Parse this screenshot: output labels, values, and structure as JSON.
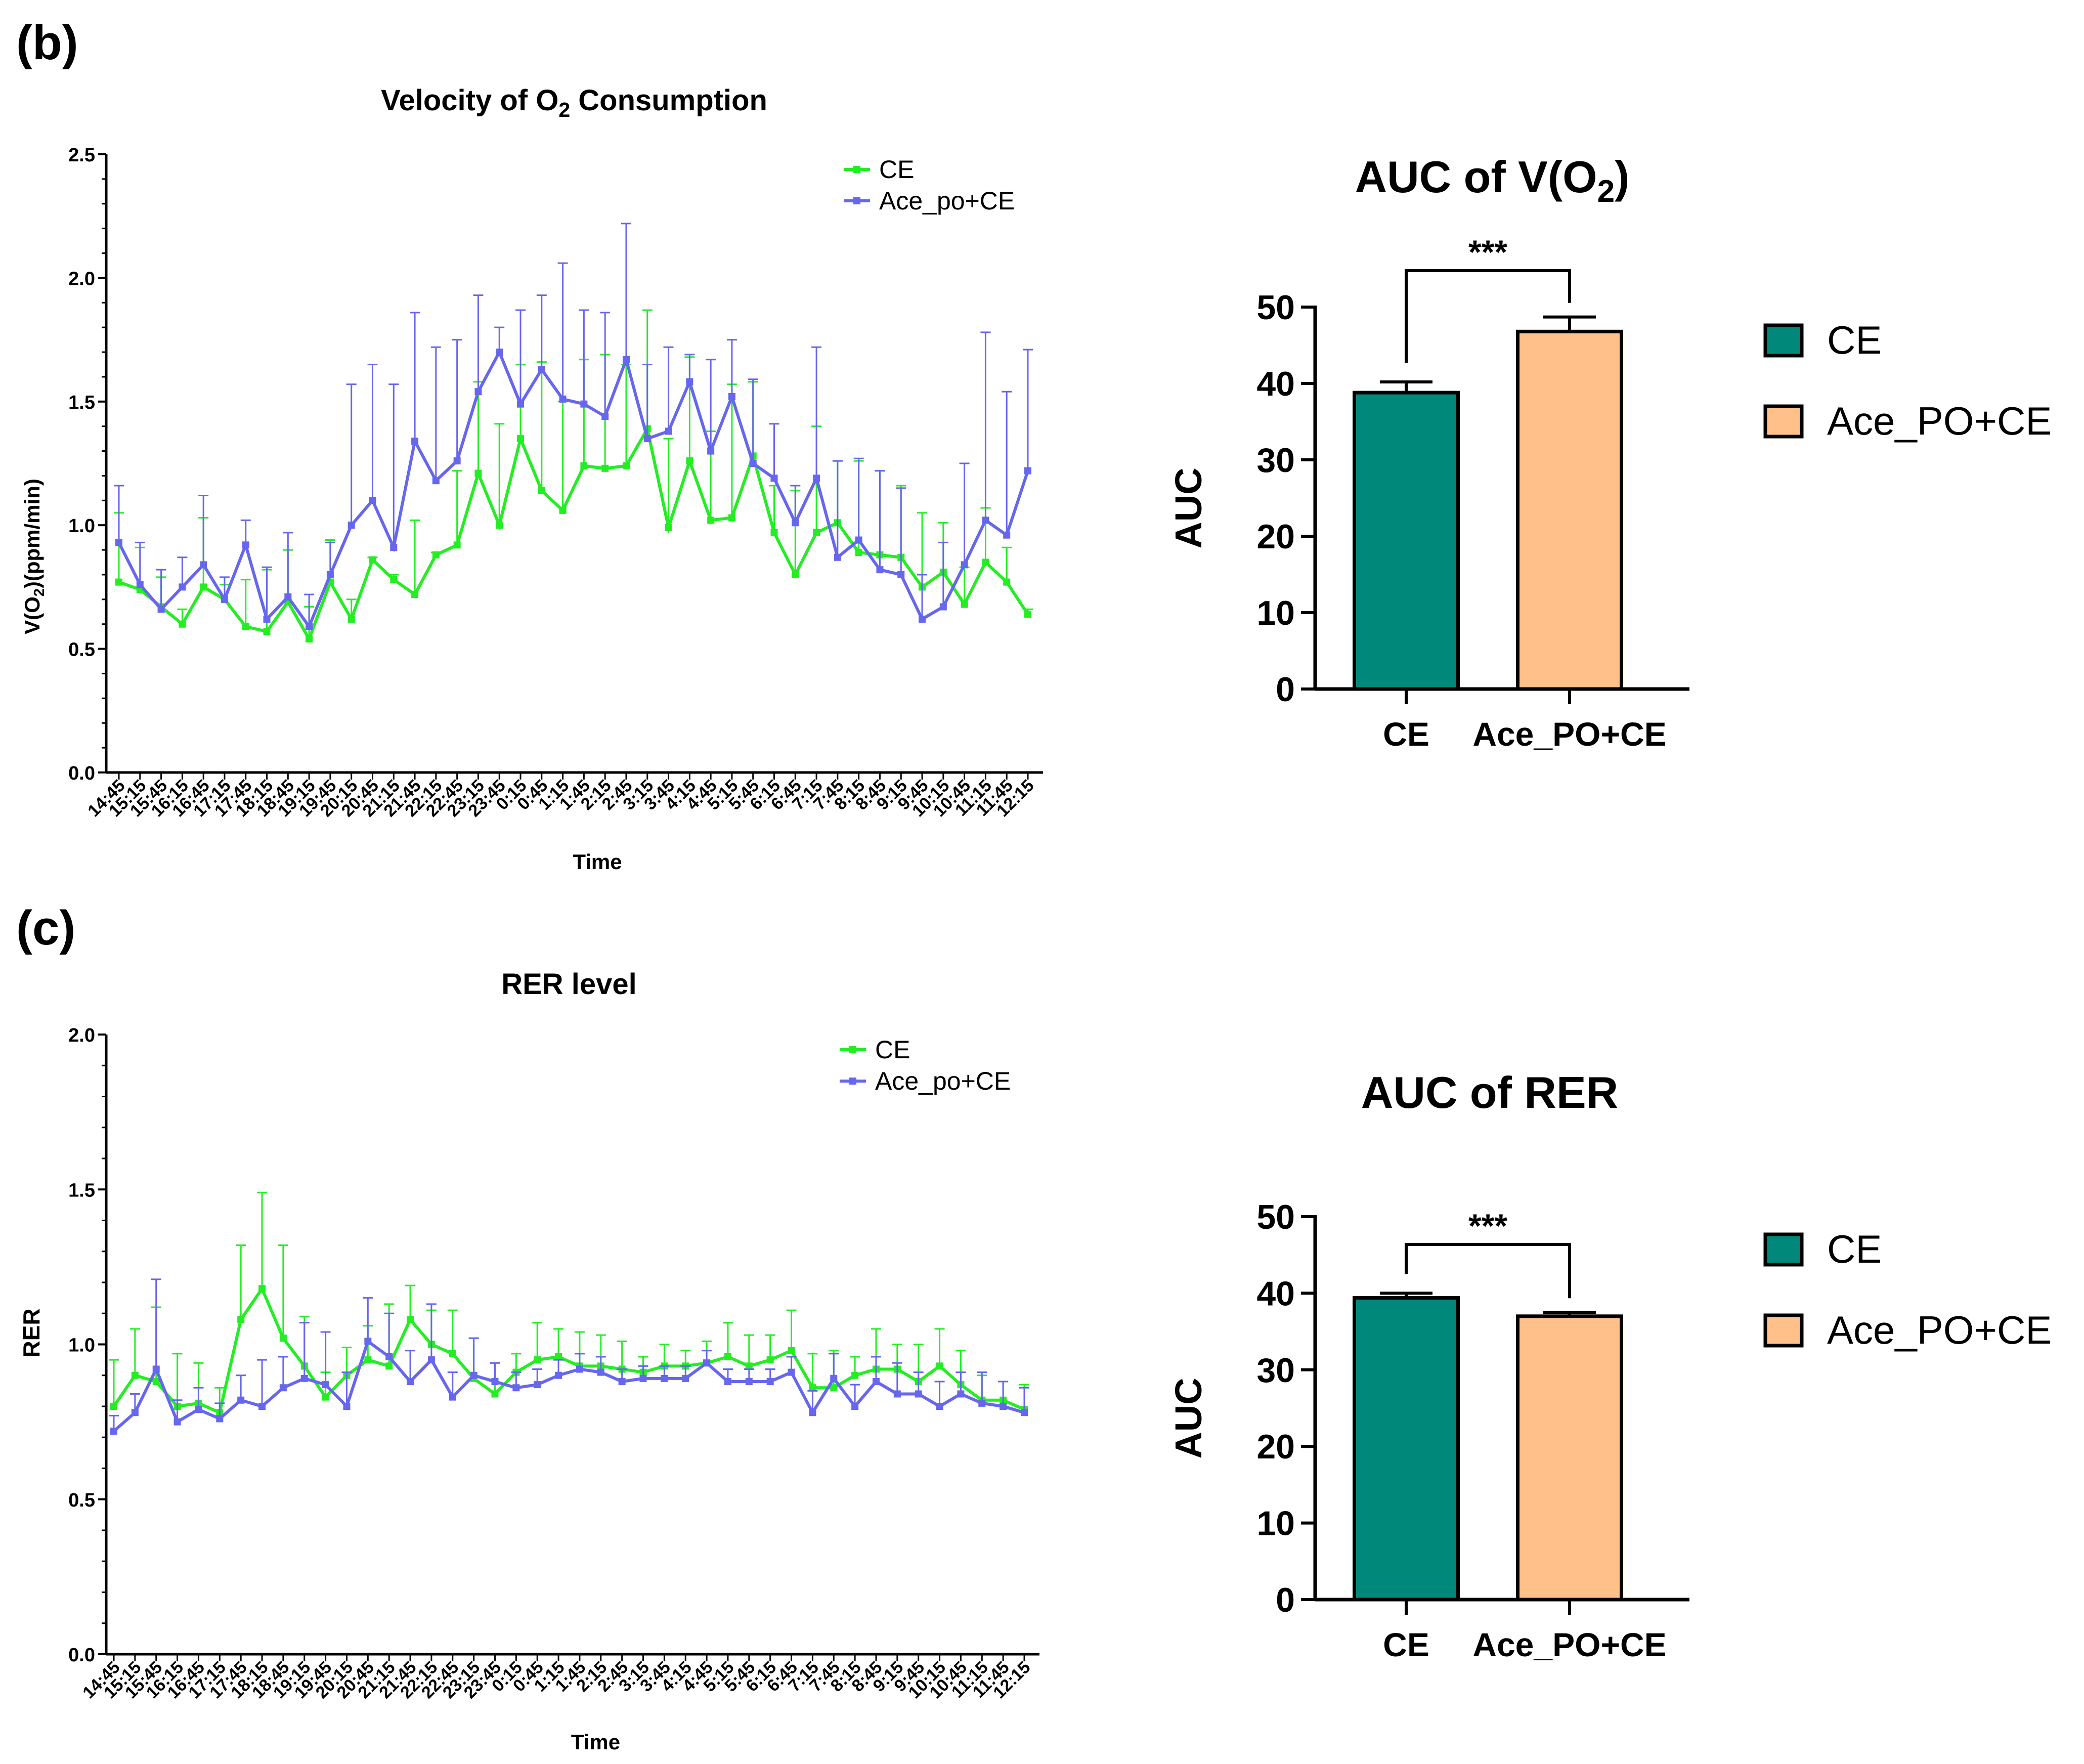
{
  "panels": {
    "b_label": "(b)",
    "c_label": "(c)"
  },
  "colors": {
    "ce_line": "#22ee22",
    "ace_line": "#6666ee",
    "bar_ce": "#00897b",
    "bar_ace": "#ffc08a"
  },
  "chart_data": [
    {
      "id": "vo2_line",
      "type": "line",
      "title_main": "Velocity of O",
      "title_sub": "2",
      "title_tail": " Consumption",
      "xlabel": "Time",
      "ylabel_pre": "V(O",
      "ylabel_sub": "2",
      "ylabel_post": ")(ppm/min)",
      "ylim": [
        0,
        2.5
      ],
      "yticks": [
        "0.0",
        "0.5",
        "1.0",
        "1.5",
        "2.0",
        "2.5"
      ],
      "categories": [
        "14:45",
        "15:15",
        "15:45",
        "16:15",
        "16:45",
        "17:15",
        "17:45",
        "18:15",
        "18:45",
        "19:15",
        "19:45",
        "20:15",
        "20:45",
        "21:15",
        "21:45",
        "22:15",
        "22:45",
        "23:15",
        "23:45",
        "0:15",
        "0:45",
        "1:15",
        "1:45",
        "2:15",
        "2:45",
        "3:15",
        "3:45",
        "4:15",
        "4:45",
        "5:15",
        "5:45",
        "6:15",
        "6:45",
        "7:15",
        "7:45",
        "8:15",
        "8:45",
        "9:15",
        "9:45",
        "10:15",
        "10:45",
        "11:15",
        "11:45",
        "12:15"
      ],
      "series": [
        {
          "name": "CE",
          "color_key": "ce_line",
          "errors_up": true,
          "values": [
            0.77,
            0.74,
            0.67,
            0.6,
            0.75,
            0.7,
            0.59,
            0.57,
            0.69,
            0.54,
            0.77,
            0.62,
            0.86,
            0.78,
            0.72,
            0.88,
            0.92,
            1.21,
            1.0,
            1.35,
            1.14,
            1.06,
            1.24,
            1.23,
            1.24,
            1.39,
            0.99,
            1.26,
            1.02,
            1.03,
            1.28,
            0.97,
            0.8,
            0.97,
            1.01,
            0.89,
            0.88,
            0.87,
            0.75,
            0.81,
            0.68,
            0.85,
            0.77,
            0.64
          ],
          "errors": [
            0.28,
            0.17,
            0.12,
            0.06,
            0.28,
            0.06,
            0.19,
            0.25,
            0.21,
            0.13,
            0.17,
            0.08,
            0.01,
            0.02,
            0.3,
            0.01,
            0.3,
            0.37,
            0.41,
            0.3,
            0.52,
            0.44,
            0.43,
            0.46,
            0.41,
            0.48,
            0.36,
            0.42,
            0.36,
            0.54,
            0.3,
            0.19,
            0.34,
            0.43,
            0.25,
            0.37,
            0.34,
            0.29,
            0.3,
            0.2,
            0.15,
            0.22,
            0.14,
            0.02
          ]
        },
        {
          "name": "Ace_po+CE",
          "color_key": "ace_line",
          "errors_up": true,
          "values": [
            0.93,
            0.76,
            0.66,
            0.75,
            0.84,
            0.7,
            0.92,
            0.62,
            0.71,
            0.59,
            0.8,
            1.0,
            1.1,
            0.91,
            1.34,
            1.18,
            1.26,
            1.54,
            1.7,
            1.49,
            1.63,
            1.51,
            1.49,
            1.44,
            1.67,
            1.35,
            1.38,
            1.58,
            1.3,
            1.52,
            1.25,
            1.19,
            1.01,
            1.19,
            0.87,
            0.94,
            0.82,
            0.8,
            0.62,
            0.67,
            0.84,
            1.02,
            0.96,
            1.22
          ],
          "errors": [
            0.23,
            0.17,
            0.16,
            0.12,
            0.28,
            0.09,
            0.1,
            0.21,
            0.26,
            0.13,
            0.13,
            0.57,
            0.55,
            0.66,
            0.52,
            0.54,
            0.49,
            0.39,
            0.1,
            0.38,
            0.3,
            0.55,
            0.38,
            0.42,
            0.55,
            0.3,
            0.34,
            0.11,
            0.37,
            0.23,
            0.34,
            0.22,
            0.15,
            0.53,
            0.39,
            0.33,
            0.4,
            0.35,
            0.18,
            0.26,
            0.41,
            0.76,
            0.58,
            0.49
          ]
        }
      ]
    },
    {
      "id": "vo2_auc",
      "type": "bar",
      "title_main": "AUC of V(O",
      "title_sub": "2",
      "title_tail": ")",
      "ylabel": "AUC",
      "ylim": [
        0,
        50
      ],
      "yticks": [
        "0",
        "10",
        "20",
        "30",
        "40",
        "50"
      ],
      "categories": [
        "CE",
        "Ace_PO+CE"
      ],
      "values": [
        38.8,
        46.8
      ],
      "errors": [
        1.4,
        1.9
      ],
      "significance": "***",
      "legend": [
        "CE",
        "Ace_PO+CE"
      ]
    },
    {
      "id": "rer_line",
      "type": "line",
      "title": "RER level",
      "xlabel": "Time",
      "ylabel": "RER",
      "ylim": [
        0,
        2.0
      ],
      "yticks": [
        "0.0",
        "0.5",
        "1.0",
        "1.5",
        "2.0"
      ],
      "categories": [
        "14:45",
        "15:15",
        "15:45",
        "16:15",
        "16:45",
        "17:15",
        "17:45",
        "18:15",
        "18:45",
        "19:15",
        "19:45",
        "20:15",
        "20:45",
        "21:15",
        "21:45",
        "22:15",
        "22:45",
        "23:15",
        "23:45",
        "0:15",
        "0:45",
        "1:15",
        "1:45",
        "2:15",
        "2:45",
        "3:15",
        "3:45",
        "4:15",
        "4:45",
        "5:15",
        "5:45",
        "6:15",
        "6:45",
        "7:15",
        "7:45",
        "8:15",
        "8:45",
        "9:15",
        "9:45",
        "10:15",
        "10:45",
        "11:15",
        "11:45",
        "12:15"
      ],
      "series": [
        {
          "name": "CE",
          "color_key": "ce_line",
          "values": [
            0.8,
            0.9,
            0.88,
            0.8,
            0.81,
            0.78,
            1.08,
            1.18,
            1.02,
            0.93,
            0.83,
            0.9,
            0.95,
            0.93,
            1.08,
            1.0,
            0.97,
            0.89,
            0.84,
            0.91,
            0.95,
            0.96,
            0.93,
            0.93,
            0.92,
            0.91,
            0.93,
            0.93,
            0.94,
            0.96,
            0.93,
            0.95,
            0.98,
            0.86,
            0.86,
            0.9,
            0.92,
            0.92,
            0.88,
            0.93,
            0.87,
            0.82,
            0.82,
            0.79
          ],
          "errors": [
            0.15,
            0.15,
            0.24,
            0.17,
            0.13,
            0.08,
            0.24,
            0.31,
            0.3,
            0.16,
            0.08,
            0.09,
            0.11,
            0.2,
            0.11,
            0.11,
            0.14,
            0.13,
            0.1,
            0.06,
            0.12,
            0.09,
            0.11,
            0.1,
            0.09,
            0.05,
            0.07,
            0.05,
            0.07,
            0.11,
            0.1,
            0.08,
            0.13,
            0.11,
            0.12,
            0.06,
            0.13,
            0.08,
            0.12,
            0.12,
            0.11,
            0.08,
            0.06,
            0.08
          ]
        },
        {
          "name": "Ace_po+CE",
          "color_key": "ace_line",
          "values": [
            0.72,
            0.78,
            0.92,
            0.75,
            0.79,
            0.76,
            0.82,
            0.8,
            0.86,
            0.89,
            0.87,
            0.8,
            1.01,
            0.96,
            0.88,
            0.95,
            0.83,
            0.9,
            0.88,
            0.86,
            0.87,
            0.9,
            0.92,
            0.91,
            0.88,
            0.89,
            0.89,
            0.89,
            0.94,
            0.88,
            0.88,
            0.88,
            0.91,
            0.78,
            0.89,
            0.8,
            0.88,
            0.84,
            0.84,
            0.8,
            0.84,
            0.81,
            0.8,
            0.78
          ],
          "errors": [
            0.05,
            0.06,
            0.29,
            0.07,
            0.07,
            0.05,
            0.08,
            0.15,
            0.1,
            0.18,
            0.17,
            0.11,
            0.14,
            0.14,
            0.1,
            0.18,
            0.08,
            0.12,
            0.06,
            0.05,
            0.05,
            0.05,
            0.05,
            0.05,
            0.04,
            0.04,
            0.04,
            0.04,
            0.04,
            0.04,
            0.04,
            0.04,
            0.05,
            0.07,
            0.08,
            0.07,
            0.08,
            0.1,
            0.07,
            0.08,
            0.07,
            0.1,
            0.08,
            0.08
          ]
        }
      ]
    },
    {
      "id": "rer_auc",
      "type": "bar",
      "title": "AUC of RER",
      "ylabel": "AUC",
      "ylim": [
        0,
        50
      ],
      "yticks": [
        "0",
        "10",
        "20",
        "30",
        "40",
        "50"
      ],
      "categories": [
        "CE",
        "Ace_PO+CE"
      ],
      "values": [
        39.4,
        37.0
      ],
      "errors": [
        0.6,
        0.5
      ],
      "significance": "***",
      "legend": [
        "CE",
        "Ace_PO+CE"
      ]
    }
  ]
}
